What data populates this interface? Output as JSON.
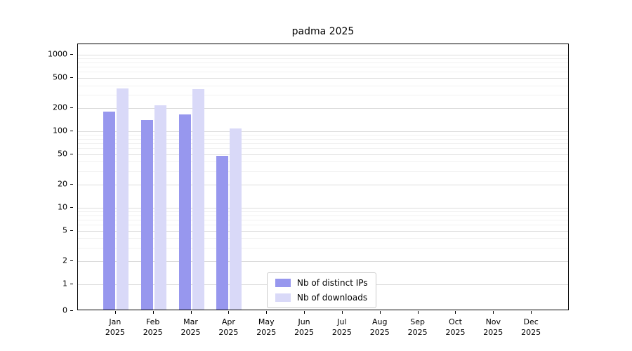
{
  "chart": {
    "title": "padma 2025"
  },
  "chart_data": {
    "type": "bar",
    "title": "padma 2025",
    "categories": [
      "Jan",
      "Feb",
      "Mar",
      "Apr",
      "May",
      "Jun",
      "Jul",
      "Aug",
      "Sep",
      "Oct",
      "Nov",
      "Dec"
    ],
    "year_label": "2025",
    "series": [
      {
        "name": "Nb of distinct IPs",
        "color": "#9797ee",
        "values": [
          175,
          135,
          160,
          46,
          0,
          0,
          0,
          0,
          0,
          0,
          0,
          0
        ]
      },
      {
        "name": "Nb of downloads",
        "color": "#d9d9f8",
        "values": [
          350,
          210,
          340,
          105,
          0,
          0,
          0,
          0,
          0,
          0,
          0,
          0
        ]
      }
    ],
    "y_ticks": [
      0,
      1,
      2,
      5,
      10,
      20,
      50,
      100,
      200,
      500,
      1000
    ],
    "y_minor_ticks": [
      3,
      4,
      6,
      7,
      8,
      9,
      30,
      40,
      60,
      70,
      80,
      90,
      300,
      400,
      600,
      700,
      800,
      900
    ],
    "y_scale": "log",
    "ylim": [
      0,
      1000
    ],
    "grid": true,
    "legend_position": "bottom-center"
  }
}
